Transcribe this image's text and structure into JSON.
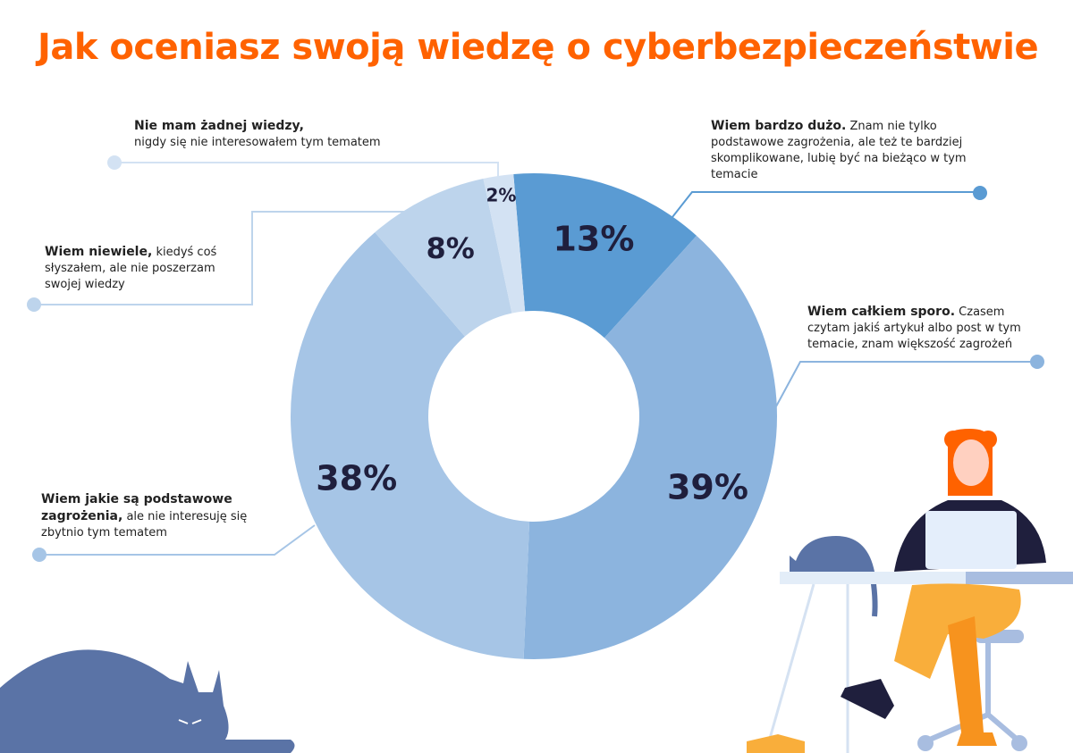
{
  "title": "Jak oceniasz swoją wiedzę o cyberbezpieczeństwie",
  "chart_data": {
    "type": "pie",
    "variant": "donut",
    "title": "Jak oceniasz swoją wiedzę o cyberbezpieczeństwie",
    "categories": [
      "Wiem bardzo dużo.",
      "Wiem całkiem sporo.",
      "Wiem jakie są podstawowe zagrożenia,",
      "Wiem niewiele,",
      "Nie mam żadnej wiedzy,"
    ],
    "values": [
      13,
      39,
      38,
      8,
      2
    ],
    "value_labels": [
      "13%",
      "39%",
      "38%",
      "8%",
      "2%"
    ],
    "colors": [
      "#5a9bd3",
      "#8cb4de",
      "#a6c5e6",
      "#bdd4ec",
      "#d3e2f3"
    ],
    "start_angle_deg": -4.8,
    "direction": "clockwise"
  },
  "labels": [
    {
      "bold": "Wiem bardzo dużo.",
      "text": " Znam nie tylko podstawowe zagrożenia, ale też te bardziej skomplikowane, lubię być na bieżąco w tym temacie"
    },
    {
      "bold": "Wiem całkiem sporo.",
      "text": " Czasem czytam jakiś artykuł  albo post w tym temacie, znam większość zagrożeń"
    },
    {
      "bold": "Wiem jakie są podstawowe zagrożenia,",
      "text": " ale nie interesuję się zbytnio tym tematem"
    },
    {
      "bold": "Wiem niewiele,",
      "text": " kiedyś coś słyszałem, ale nie poszerzam swojej wiedzy"
    },
    {
      "bold": "Nie mam żadnej wiedzy,",
      "text": " nigdy się nie interesowałem tym tematem"
    }
  ]
}
